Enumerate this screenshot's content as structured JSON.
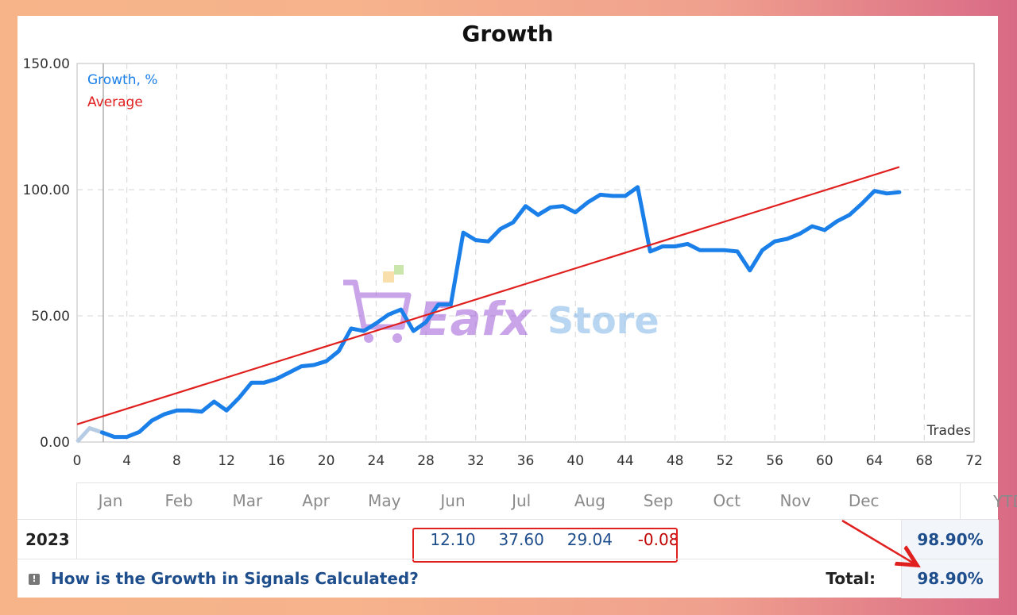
{
  "chart_data": {
    "type": "line",
    "title": "Growth",
    "xlabel": "Trades",
    "ylabel": "",
    "xlim": [
      0,
      72
    ],
    "ylim": [
      0,
      150
    ],
    "x_ticks": [
      "0",
      "4",
      "8",
      "12",
      "16",
      "20",
      "24",
      "28",
      "32",
      "36",
      "40",
      "44",
      "48",
      "52",
      "56",
      "60",
      "64",
      "68",
      "72"
    ],
    "y_ticks": [
      "0.00",
      "50.00",
      "100.00",
      "150.00"
    ],
    "grid": true,
    "legend": "top-left",
    "series": [
      {
        "name": "Growth, %",
        "color": "#1a7fe8",
        "x": [
          0,
          1,
          2,
          3,
          4,
          5,
          6,
          7,
          8,
          9,
          10,
          11,
          12,
          13,
          14,
          15,
          16,
          17,
          18,
          19,
          20,
          21,
          22,
          23,
          24,
          25,
          26,
          27,
          28,
          29,
          30,
          31,
          32,
          33,
          34,
          35,
          36,
          37,
          38,
          39,
          40,
          41,
          42,
          43,
          44,
          45,
          46,
          47,
          48,
          49,
          50,
          51,
          52,
          53,
          54,
          55,
          56,
          57,
          58,
          59,
          60,
          61,
          62,
          63,
          64,
          65,
          66
        ],
        "y": [
          0,
          5.5,
          3.8,
          2,
          2,
          4,
          8.5,
          11,
          12.5,
          12.5,
          12,
          16,
          12.5,
          17.5,
          23.5,
          23.5,
          25,
          27.5,
          30,
          30.5,
          32,
          36,
          45,
          44,
          47,
          50.5,
          52.5,
          44,
          47.5,
          54.5,
          54.5,
          83,
          80,
          79.5,
          84.5,
          87,
          93.5,
          90,
          93,
          93.5,
          91,
          95,
          98,
          97.5,
          97.5,
          101,
          75.5,
          77.5,
          77.5,
          78.5,
          76,
          76,
          76,
          75.5,
          68,
          76,
          79.5,
          80.5,
          82.5,
          85.5,
          84,
          87.5,
          90,
          94.5,
          99.5,
          98.5,
          99
        ]
      },
      {
        "name": "Average",
        "color": "#e0201f",
        "x": [
          0,
          66
        ],
        "y": [
          7,
          109
        ]
      }
    ]
  },
  "table": {
    "months": [
      "Jan",
      "Feb",
      "Mar",
      "Apr",
      "May",
      "Jun",
      "Jul",
      "Aug",
      "Sep",
      "Oct",
      "Nov",
      "Dec"
    ],
    "ytd_label": "YTD",
    "year": "2023",
    "values": [
      "",
      "",
      "",
      "",
      "",
      "12.10",
      "37.60",
      "29.04",
      "-0.08",
      "",
      "",
      ""
    ],
    "ytd": "98.90%",
    "help_text": "How is the Growth in Signals Calculated?",
    "total_label": "Total:",
    "total": "98.90%"
  },
  "watermark": {
    "brand": "Eafx",
    "store": "Store",
    "brand_color": "#a05ad8",
    "store_color": "#7fb6e6"
  },
  "annotation": {
    "highlight_color": "#e0201f"
  }
}
